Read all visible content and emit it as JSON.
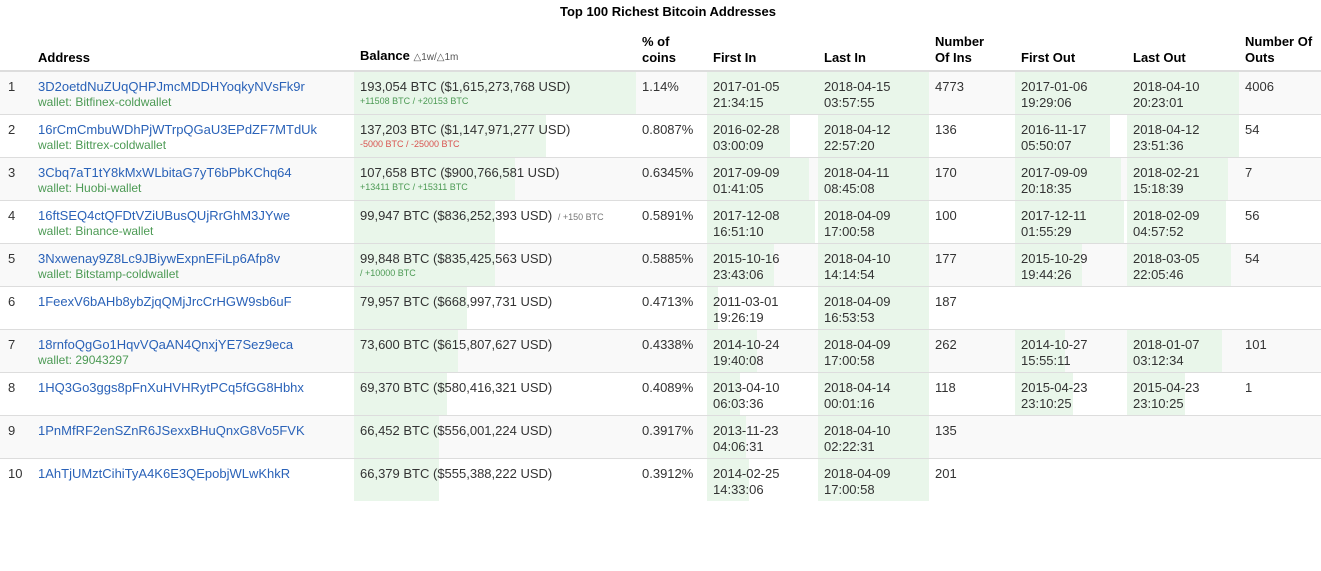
{
  "title": "Top 100 Richest Bitcoin Addresses",
  "headers": {
    "rank": "",
    "address": "Address",
    "balance": "Balance",
    "balance_sort": "△1w/△1m",
    "pct1": "% of",
    "pct2": "coins",
    "first_in": "First In",
    "last_in": "Last In",
    "num_ins1": "Number",
    "num_ins2": "Of Ins",
    "first_out": "First Out",
    "last_out": "Last Out",
    "num_outs1": "Number Of",
    "num_outs2": "Outs"
  },
  "rows": [
    {
      "rank": "1",
      "address": "3D2oetdNuZUqQHPJmcMDDHYoqkyNVsFk9r",
      "wallet": "wallet: Bitfinex-coldwallet",
      "balance": "193,054 BTC ($1,615,273,768 USD)",
      "change": "+11508 BTC / +20153 BTC",
      "change_type": "pos",
      "pct": "1.14%",
      "first_in_date": "2017-01-05",
      "first_in_time": "21:34:15",
      "last_in_date": "2018-04-15",
      "last_in_time": "03:57:55",
      "num_ins": "4773",
      "first_out_date": "2017-01-06",
      "first_out_time": "19:29:06",
      "last_out_date": "2018-04-10",
      "last_out_time": "20:23:01",
      "num_outs": "4006",
      "balance_fill": 1.0,
      "first_in_fill": 1.0,
      "last_in_fill": 1.0,
      "first_out_fill": 1.0,
      "last_out_fill": 1.0
    },
    {
      "rank": "2",
      "address": "16rCmCmbuWDhPjWTrpQGaU3EPdZF7MTdUk",
      "wallet": "wallet: Bittrex-coldwallet",
      "balance": "137,203 BTC ($1,147,971,277 USD)",
      "change": "-5000 BTC / -25000 BTC",
      "change_type": "neg",
      "pct": "0.8087%",
      "first_in_date": "2016-02-28",
      "first_in_time": "03:00:09",
      "last_in_date": "2018-04-12",
      "last_in_time": "22:57:20",
      "num_ins": "136",
      "first_out_date": "2016-11-17",
      "first_out_time": "05:50:07",
      "last_out_date": "2018-04-12",
      "last_out_time": "23:51:36",
      "num_outs": "54",
      "balance_fill": 0.68,
      "first_in_fill": 0.75,
      "last_in_fill": 1.0,
      "first_out_fill": 0.85,
      "last_out_fill": 1.0
    },
    {
      "rank": "3",
      "address": "3Cbq7aT1tY8kMxWLbitaG7yT6bPbKChq64",
      "wallet": "wallet: Huobi-wallet",
      "balance": "107,658 BTC ($900,766,581 USD)",
      "change": "+13411 BTC / +15311 BTC",
      "change_type": "pos",
      "pct": "0.6345%",
      "first_in_date": "2017-09-09",
      "first_in_time": "01:41:05",
      "last_in_date": "2018-04-11",
      "last_in_time": "08:45:08",
      "num_ins": "170",
      "first_out_date": "2017-09-09",
      "first_out_time": "20:18:35",
      "last_out_date": "2018-02-21",
      "last_out_time": "15:18:39",
      "num_outs": "7",
      "balance_fill": 0.57,
      "first_in_fill": 0.92,
      "last_in_fill": 1.0,
      "first_out_fill": 0.95,
      "last_out_fill": 0.9
    },
    {
      "rank": "4",
      "address": "16ftSEQ4ctQFDtVZiUBusQUjRrGhM3JYwe",
      "wallet": "wallet: Binance-wallet",
      "balance": "99,947 BTC ($836,252,393 USD)",
      "change_inline": "/ +150 BTC",
      "pct": "0.5891%",
      "first_in_date": "2017-12-08",
      "first_in_time": "16:51:10",
      "last_in_date": "2018-04-09",
      "last_in_time": "17:00:58",
      "num_ins": "100",
      "first_out_date": "2017-12-11",
      "first_out_time": "01:55:29",
      "last_out_date": "2018-02-09",
      "last_out_time": "04:57:52",
      "num_outs": "56",
      "balance_fill": 0.5,
      "first_in_fill": 0.97,
      "last_in_fill": 1.0,
      "first_out_fill": 0.97,
      "last_out_fill": 0.88
    },
    {
      "rank": "5",
      "address": "3Nxwenay9Z8Lc9JBiywExpnEFiLp6Afp8v",
      "wallet": "wallet: Bitstamp-coldwallet",
      "balance": "99,848 BTC ($835,425,563 USD)",
      "change": "/ +10000 BTC",
      "change_type": "pos",
      "pct": "0.5885%",
      "first_in_date": "2015-10-16",
      "first_in_time": "23:43:06",
      "last_in_date": "2018-04-10",
      "last_in_time": "14:14:54",
      "num_ins": "177",
      "first_out_date": "2015-10-29",
      "first_out_time": "19:44:26",
      "last_out_date": "2018-03-05",
      "last_out_time": "22:05:46",
      "num_outs": "54",
      "balance_fill": 0.5,
      "first_in_fill": 0.6,
      "last_in_fill": 1.0,
      "first_out_fill": 0.6,
      "last_out_fill": 0.93
    },
    {
      "rank": "6",
      "address": "1FeexV6bAHb8ybZjqQMjJrcCrHGW9sb6uF",
      "wallet": "",
      "balance": "79,957 BTC ($668,997,731 USD)",
      "pct": "0.4713%",
      "first_in_date": "2011-03-01",
      "first_in_time": "19:26:19",
      "last_in_date": "2018-04-09",
      "last_in_time": "16:53:53",
      "num_ins": "187",
      "first_out_date": "",
      "first_out_time": "",
      "last_out_date": "",
      "last_out_time": "",
      "num_outs": "",
      "balance_fill": 0.4,
      "first_in_fill": 0.1,
      "last_in_fill": 1.0,
      "first_out_fill": 0,
      "last_out_fill": 0
    },
    {
      "rank": "7",
      "address": "18rnfoQgGo1HqvVQaAN4QnxjYE7Sez9eca",
      "wallet": "wallet: 29043297",
      "balance": "73,600 BTC ($615,807,627 USD)",
      "pct": "0.4338%",
      "first_in_date": "2014-10-24",
      "first_in_time": "19:40:08",
      "last_in_date": "2018-04-09",
      "last_in_time": "17:00:58",
      "num_ins": "262",
      "first_out_date": "2014-10-27",
      "first_out_time": "15:55:11",
      "last_out_date": "2018-01-07",
      "last_out_time": "03:12:34",
      "num_outs": "101",
      "balance_fill": 0.37,
      "first_in_fill": 0.45,
      "last_in_fill": 1.0,
      "first_out_fill": 0.45,
      "last_out_fill": 0.85
    },
    {
      "rank": "8",
      "address": "1HQ3Go3ggs8pFnXuHVHRytPCq5fGG8Hbhx",
      "wallet": "",
      "balance": "69,370 BTC ($580,416,321 USD)",
      "pct": "0.4089%",
      "first_in_date": "2013-04-10",
      "first_in_time": "06:03:36",
      "last_in_date": "2018-04-14",
      "last_in_time": "00:01:16",
      "num_ins": "118",
      "first_out_date": "2015-04-23",
      "first_out_time": "23:10:25",
      "last_out_date": "2015-04-23",
      "last_out_time": "23:10:25",
      "num_outs": "1",
      "balance_fill": 0.33,
      "first_in_fill": 0.3,
      "last_in_fill": 1.0,
      "first_out_fill": 0.52,
      "last_out_fill": 0.52
    },
    {
      "rank": "9",
      "address": "1PnMfRF2enSZnR6JSexxBHuQnxG8Vo5FVK",
      "wallet": "",
      "balance": "66,452 BTC ($556,001,224 USD)",
      "pct": "0.3917%",
      "first_in_date": "2013-11-23",
      "first_in_time": "04:06:31",
      "last_in_date": "2018-04-10",
      "last_in_time": "02:22:31",
      "num_ins": "135",
      "first_out_date": "",
      "first_out_time": "",
      "last_out_date": "",
      "last_out_time": "",
      "num_outs": "",
      "balance_fill": 0.3,
      "first_in_fill": 0.35,
      "last_in_fill": 1.0,
      "first_out_fill": 0,
      "last_out_fill": 0
    },
    {
      "rank": "10",
      "address": "1AhTjUMztCihiTyA4K6E3QEpobjWLwKhkR",
      "wallet": "",
      "balance": "66,379 BTC ($555,388,222 USD)",
      "pct": "0.3912%",
      "first_in_date": "2014-02-25",
      "first_in_time": "14:33:06",
      "last_in_date": "2018-04-09",
      "last_in_time": "17:00:58",
      "num_ins": "201",
      "first_out_date": "",
      "first_out_time": "",
      "last_out_date": "",
      "last_out_time": "",
      "num_outs": "",
      "balance_fill": 0.3,
      "first_in_fill": 0.38,
      "last_in_fill": 1.0,
      "first_out_fill": 0,
      "last_out_fill": 0
    }
  ],
  "colors": {
    "link": "#2a62b8",
    "wallet": "#4c9a54",
    "positive": "#4c9a54",
    "negative": "#d9534f",
    "bar_fill": "#e9f6ea"
  }
}
